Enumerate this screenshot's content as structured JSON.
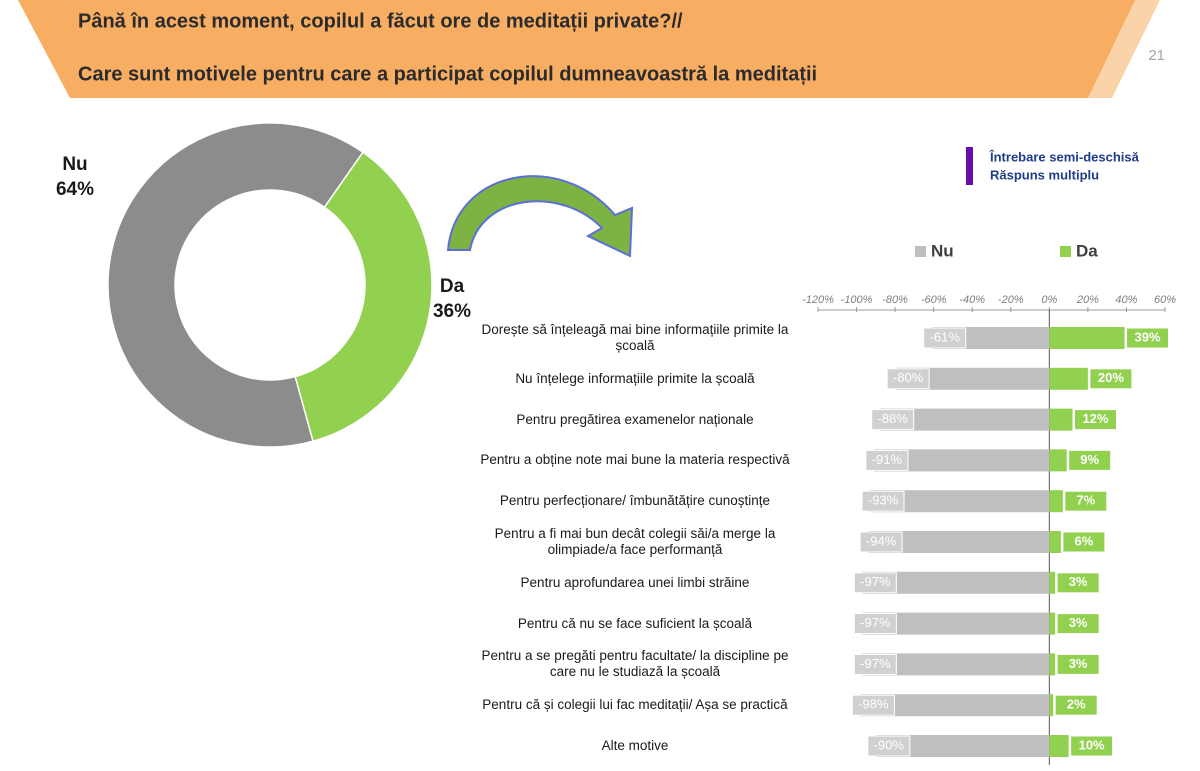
{
  "header": {
    "title": "Până în acest moment, copilul a făcut ore de meditații private?//",
    "subtitle": "Care sunt motivele pentru care a participat copilul dumneavoastră la meditații",
    "page": "21"
  },
  "note": [
    "Întrebare semi-deschisă",
    "Răspuns multiplu"
  ],
  "chart_data": [
    {
      "type": "pie",
      "categories": [
        "Nu",
        "Da"
      ],
      "values": [
        64,
        36
      ],
      "value_labels": [
        "64%",
        "36%"
      ],
      "colors": [
        "#8c8c8c",
        "#92d050"
      ],
      "donut": true
    },
    {
      "type": "bar",
      "orientation": "horizontal",
      "stacked": false,
      "categories": [
        "Dorește să înțeleagă mai bine informațiile primite la școală",
        "Nu înțelege informațiile primite la școală",
        "Pentru pregătirea examenelor naționale",
        "Pentru a obține note mai bune la materia respectivă",
        "Pentru perfecționare/ îmbunătățire cunoștințe",
        "Pentru a fi mai bun decât colegii săi/a merge la olimpiade/a face performanță",
        "Pentru aprofundarea unei limbi străine",
        "Pentru că nu se face suficient la școală",
        "Pentru a se pregăti pentru facultate/ la discipline pe care nu le studiază la școală",
        "Pentru că și colegii lui fac meditații/ Așa se practică",
        "Alte motive"
      ],
      "series": [
        {
          "name": "Nu",
          "color": "#bfbfbf",
          "values": [
            -61,
            -80,
            -88,
            -91,
            -93,
            -94,
            -97,
            -97,
            -97,
            -98,
            -90
          ],
          "value_labels": [
            "-61%",
            "-80%",
            "-88%",
            "-91%",
            "-93%",
            "-94%",
            "-97%",
            "-97%",
            "-97%",
            "-98%",
            "-90%"
          ]
        },
        {
          "name": "Da",
          "color": "#92d050",
          "values": [
            39,
            20,
            12,
            9,
            7,
            6,
            3,
            3,
            3,
            2,
            10
          ],
          "value_labels": [
            "39%",
            "20%",
            "12%",
            "9%",
            "7%",
            "6%",
            "3%",
            "3%",
            "3%",
            "2%",
            "10%"
          ]
        }
      ],
      "xlim": [
        -120,
        60
      ],
      "xticks": [
        {
          "value": -120,
          "label": "-120%"
        },
        {
          "value": -100,
          "label": "-100%"
        },
        {
          "value": -80,
          "label": "-80%"
        },
        {
          "value": -60,
          "label": "-60%"
        },
        {
          "value": -40,
          "label": "-40%"
        },
        {
          "value": -20,
          "label": "-20%"
        },
        {
          "value": 0,
          "label": "0%"
        },
        {
          "value": 20,
          "label": "20%"
        },
        {
          "value": 40,
          "label": "40%"
        },
        {
          "value": 60,
          "label": "60%"
        }
      ],
      "legend": "top"
    }
  ]
}
